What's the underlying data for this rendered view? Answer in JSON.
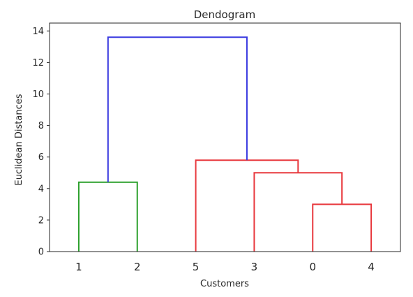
{
  "chart_data": {
    "type": "dendrogram",
    "title": "Dendogram",
    "xlabel": "Customers",
    "ylabel": "Euclidean Distances",
    "leaf_order": [
      "1",
      "2",
      "5",
      "3",
      "0",
      "4"
    ],
    "ylim": [
      0,
      14.5
    ],
    "yticks": [
      0,
      2,
      4,
      6,
      8,
      10,
      12,
      14
    ],
    "grid": false,
    "merges": [
      {
        "left": "0",
        "right": "4",
        "height": 3.0,
        "cluster": "red"
      },
      {
        "left": "3",
        "right": "{0,4}",
        "height": 5.0,
        "cluster": "red"
      },
      {
        "left": "5",
        "right": "{3,0,4}",
        "height": 5.8,
        "cluster": "red"
      },
      {
        "left": "1",
        "right": "2",
        "height": 4.4,
        "cluster": "green"
      },
      {
        "left": "{1,2}",
        "right": "{5,3,0,4}",
        "height": 13.6,
        "cluster": "blue"
      }
    ],
    "colors": {
      "green": "#2ca02c",
      "red": "#e8383d",
      "blue": "#3a3ae0",
      "axis": "#262626"
    }
  }
}
